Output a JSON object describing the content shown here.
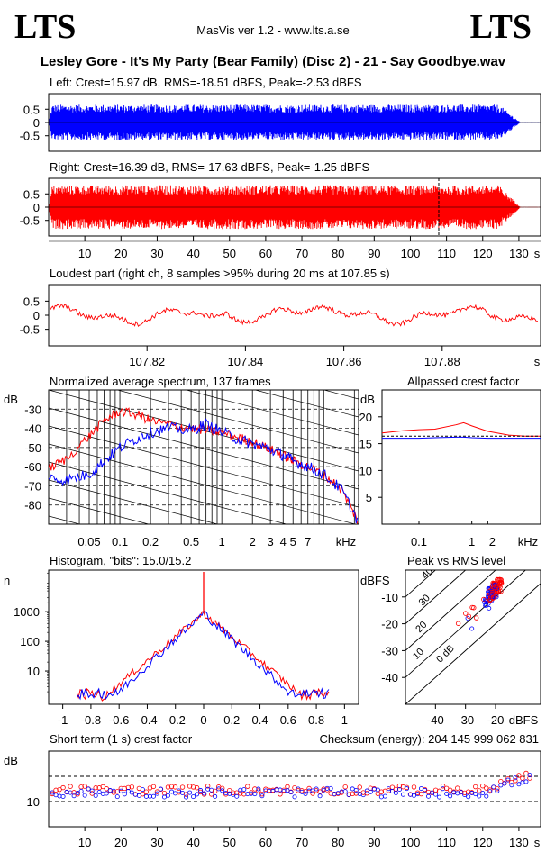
{
  "header": {
    "logo_left": "LTS",
    "logo_right": "LTS",
    "app_title": "MasVis ver 1.2 - www.lts.a.se",
    "file_title": "Lesley Gore - It's My Party (Bear Family) (Disc 2) - 21 - Say Goodbye.wav"
  },
  "colors": {
    "left": "#0000ff",
    "right": "#ff0000",
    "axis": "#000000",
    "grid": "#000000"
  },
  "chart_data": [
    {
      "id": "left_wave",
      "type": "area",
      "title": "Left: Crest=15.97 dB, RMS=-18.51 dBFS, Peak=-2.53 dBFS",
      "yticks": [
        "0.5",
        "0",
        "-0.5"
      ],
      "ylim": [
        -1,
        1
      ],
      "xlim": [
        0,
        136
      ],
      "series": [
        {
          "color": "#0000ff",
          "envelope_end_s": 127
        }
      ]
    },
    {
      "id": "right_wave",
      "type": "area",
      "title": "Right: Crest=16.39 dB, RMS=-17.63 dBFS, Peak=-1.25 dBFS",
      "yticks": [
        "0.5",
        "0",
        "-0.5"
      ],
      "ylim": [
        -1,
        1
      ],
      "xlim": [
        0,
        136
      ],
      "xticks": [
        "10",
        "20",
        "30",
        "40",
        "50",
        "60",
        "70",
        "80",
        "90",
        "100",
        "110",
        "120",
        "130"
      ],
      "xunit": "s",
      "marker_s": 107.85,
      "series": [
        {
          "color": "#ff0000",
          "envelope_end_s": 127
        }
      ]
    },
    {
      "id": "loudest",
      "type": "line",
      "title": "Loudest part (right ch, 8 samples >95% during 20 ms at 107.85 s)",
      "yticks": [
        "0.5",
        "0",
        "-0.5"
      ],
      "ylim": [
        -1,
        1
      ],
      "xlim": [
        107.8,
        107.9
      ],
      "xticks": [
        "107.82",
        "107.84",
        "107.86",
        "107.88"
      ],
      "xunit": "s"
    },
    {
      "id": "spectrum",
      "type": "line",
      "title": "Normalized average spectrum, 137 frames",
      "ylabel": "dB",
      "yticks": [
        "-30",
        "-40",
        "-50",
        "-60",
        "-70",
        "-80"
      ],
      "xticks": [
        "0.05",
        "0.1",
        "0.2",
        "0.5",
        "1",
        "2",
        "3",
        "4",
        "5",
        "7"
      ],
      "xunit": "kHz",
      "xlim": [
        0.02,
        22
      ],
      "ylim": [
        -90,
        -20
      ],
      "series": [
        {
          "color": "#ff0000",
          "x": [
            0.02,
            0.03,
            0.05,
            0.07,
            0.1,
            0.15,
            0.2,
            0.3,
            0.5,
            0.7,
            1,
            1.5,
            2,
            3,
            4,
            5,
            7,
            10,
            15,
            22
          ],
          "values": [
            -61,
            -56,
            -44,
            -36,
            -31,
            -33,
            -36,
            -38,
            -40,
            -41,
            -42,
            -45,
            -47,
            -51,
            -54,
            -57,
            -60,
            -64,
            -72,
            -89
          ]
        },
        {
          "color": "#0000ff",
          "x": [
            0.02,
            0.03,
            0.05,
            0.07,
            0.1,
            0.15,
            0.2,
            0.3,
            0.5,
            0.7,
            1,
            1.5,
            2,
            3,
            4,
            5,
            7,
            10,
            15,
            22
          ],
          "values": [
            -66,
            -67,
            -64,
            -57,
            -50,
            -45,
            -42,
            -40,
            -41,
            -38,
            -42,
            -46,
            -48,
            -51,
            -54,
            -57,
            -60,
            -64,
            -72,
            -89
          ]
        }
      ]
    },
    {
      "id": "allpass_crest",
      "type": "line",
      "title": "Allpassed crest factor",
      "ylabel": "dB",
      "yticks": [
        "20",
        "15",
        "10",
        "5"
      ],
      "ylim": [
        0,
        25
      ],
      "xticks": [
        "0.1",
        "1",
        "2"
      ],
      "xunit": "kHz",
      "xlim": [
        0.02,
        20
      ],
      "series": [
        {
          "color": "#ff0000",
          "x": [
            0.02,
            0.05,
            0.1,
            0.2,
            0.5,
            0.7,
            1,
            2,
            5,
            10,
            20
          ],
          "values": [
            17,
            17.4,
            17.6,
            17.7,
            18.5,
            18.9,
            18.3,
            17.3,
            16.6,
            16.4,
            16.4
          ]
        },
        {
          "color": "#0000ff",
          "x": [
            0.02,
            0.05,
            0.1,
            0.2,
            0.5,
            0.7,
            1,
            2,
            5,
            10,
            20
          ],
          "values": [
            16,
            16,
            16,
            16.1,
            16.2,
            16.2,
            16.1,
            16,
            16,
            16,
            16
          ]
        }
      ]
    },
    {
      "id": "histogram",
      "type": "line",
      "title": "Histogram, \"bits\": 15.0/15.2",
      "ylabel": "n",
      "yticks": [
        "1000",
        "100",
        "10"
      ],
      "yscale": "log",
      "xticks": [
        "-1",
        "-0.8",
        "-0.6",
        "-0.4",
        "-0.2",
        "0",
        "0.2",
        "0.4",
        "0.6",
        "0.8",
        "1"
      ],
      "xlim": [
        -1.1,
        1.1
      ]
    },
    {
      "id": "peak_vs_rms",
      "type": "scatter",
      "title": "Peak vs RMS level",
      "ylabel": "dBFS",
      "xlabel": "dBFS",
      "yticks": [
        "-10",
        "-20",
        "-30",
        "-40"
      ],
      "xticks": [
        "-40",
        "-30",
        "-20"
      ],
      "xlim": [
        -50,
        -5
      ],
      "ylim": [
        -50,
        0
      ],
      "diagonals": [
        "40",
        "30",
        "20",
        "10",
        "0 dB"
      ]
    },
    {
      "id": "short_crest",
      "type": "scatter",
      "title": "Short term (1 s) crest factor",
      "checksum": "Checksum (energy):   204 145 999 062 831",
      "ylabel": "dB",
      "yticks": [
        "10"
      ],
      "ylim": [
        0,
        30
      ],
      "xticks": [
        "10",
        "20",
        "30",
        "40",
        "50",
        "60",
        "70",
        "80",
        "90",
        "100",
        "110",
        "120",
        "130"
      ],
      "xunit": "s",
      "xlim": [
        0,
        136
      ]
    }
  ]
}
